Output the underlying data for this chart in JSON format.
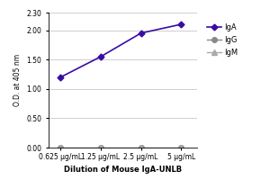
{
  "x_labels": [
    "0.625 μg/mL",
    "1.25 μg/mL",
    "2.5 μg/mL",
    "5 μg/mL"
  ],
  "x_values": [
    0,
    1,
    2,
    3
  ],
  "series": [
    {
      "name": "IgA",
      "y": [
        1.2,
        1.55,
        1.95,
        2.1
      ],
      "color": "#3a0ca3",
      "marker": "D",
      "markersize": 3.5,
      "linewidth": 1.2
    },
    {
      "name": "IgG",
      "y": [
        0.0,
        0.0,
        0.0,
        0.0
      ],
      "color": "#888888",
      "marker": "o",
      "markersize": 4,
      "linewidth": 1.0
    },
    {
      "name": "IgM",
      "y": [
        0.0,
        0.0,
        0.0,
        0.0
      ],
      "color": "#aaaaaa",
      "marker": "^",
      "markersize": 4,
      "linewidth": 1.0
    }
  ],
  "ylabel": "O.D. at 405 nm",
  "xlabel": "Dilution of Mouse IgA-UNLB",
  "ylim": [
    0.0,
    2.3
  ],
  "yticks": [
    0.0,
    0.5,
    1.0,
    1.5,
    2.0,
    2.3
  ],
  "background_color": "#ffffff",
  "grid_color": "#c8c8c8",
  "ylabel_fontsize": 5.5,
  "xlabel_fontsize": 6.0,
  "tick_fontsize": 5.5,
  "legend_fontsize": 6.0
}
